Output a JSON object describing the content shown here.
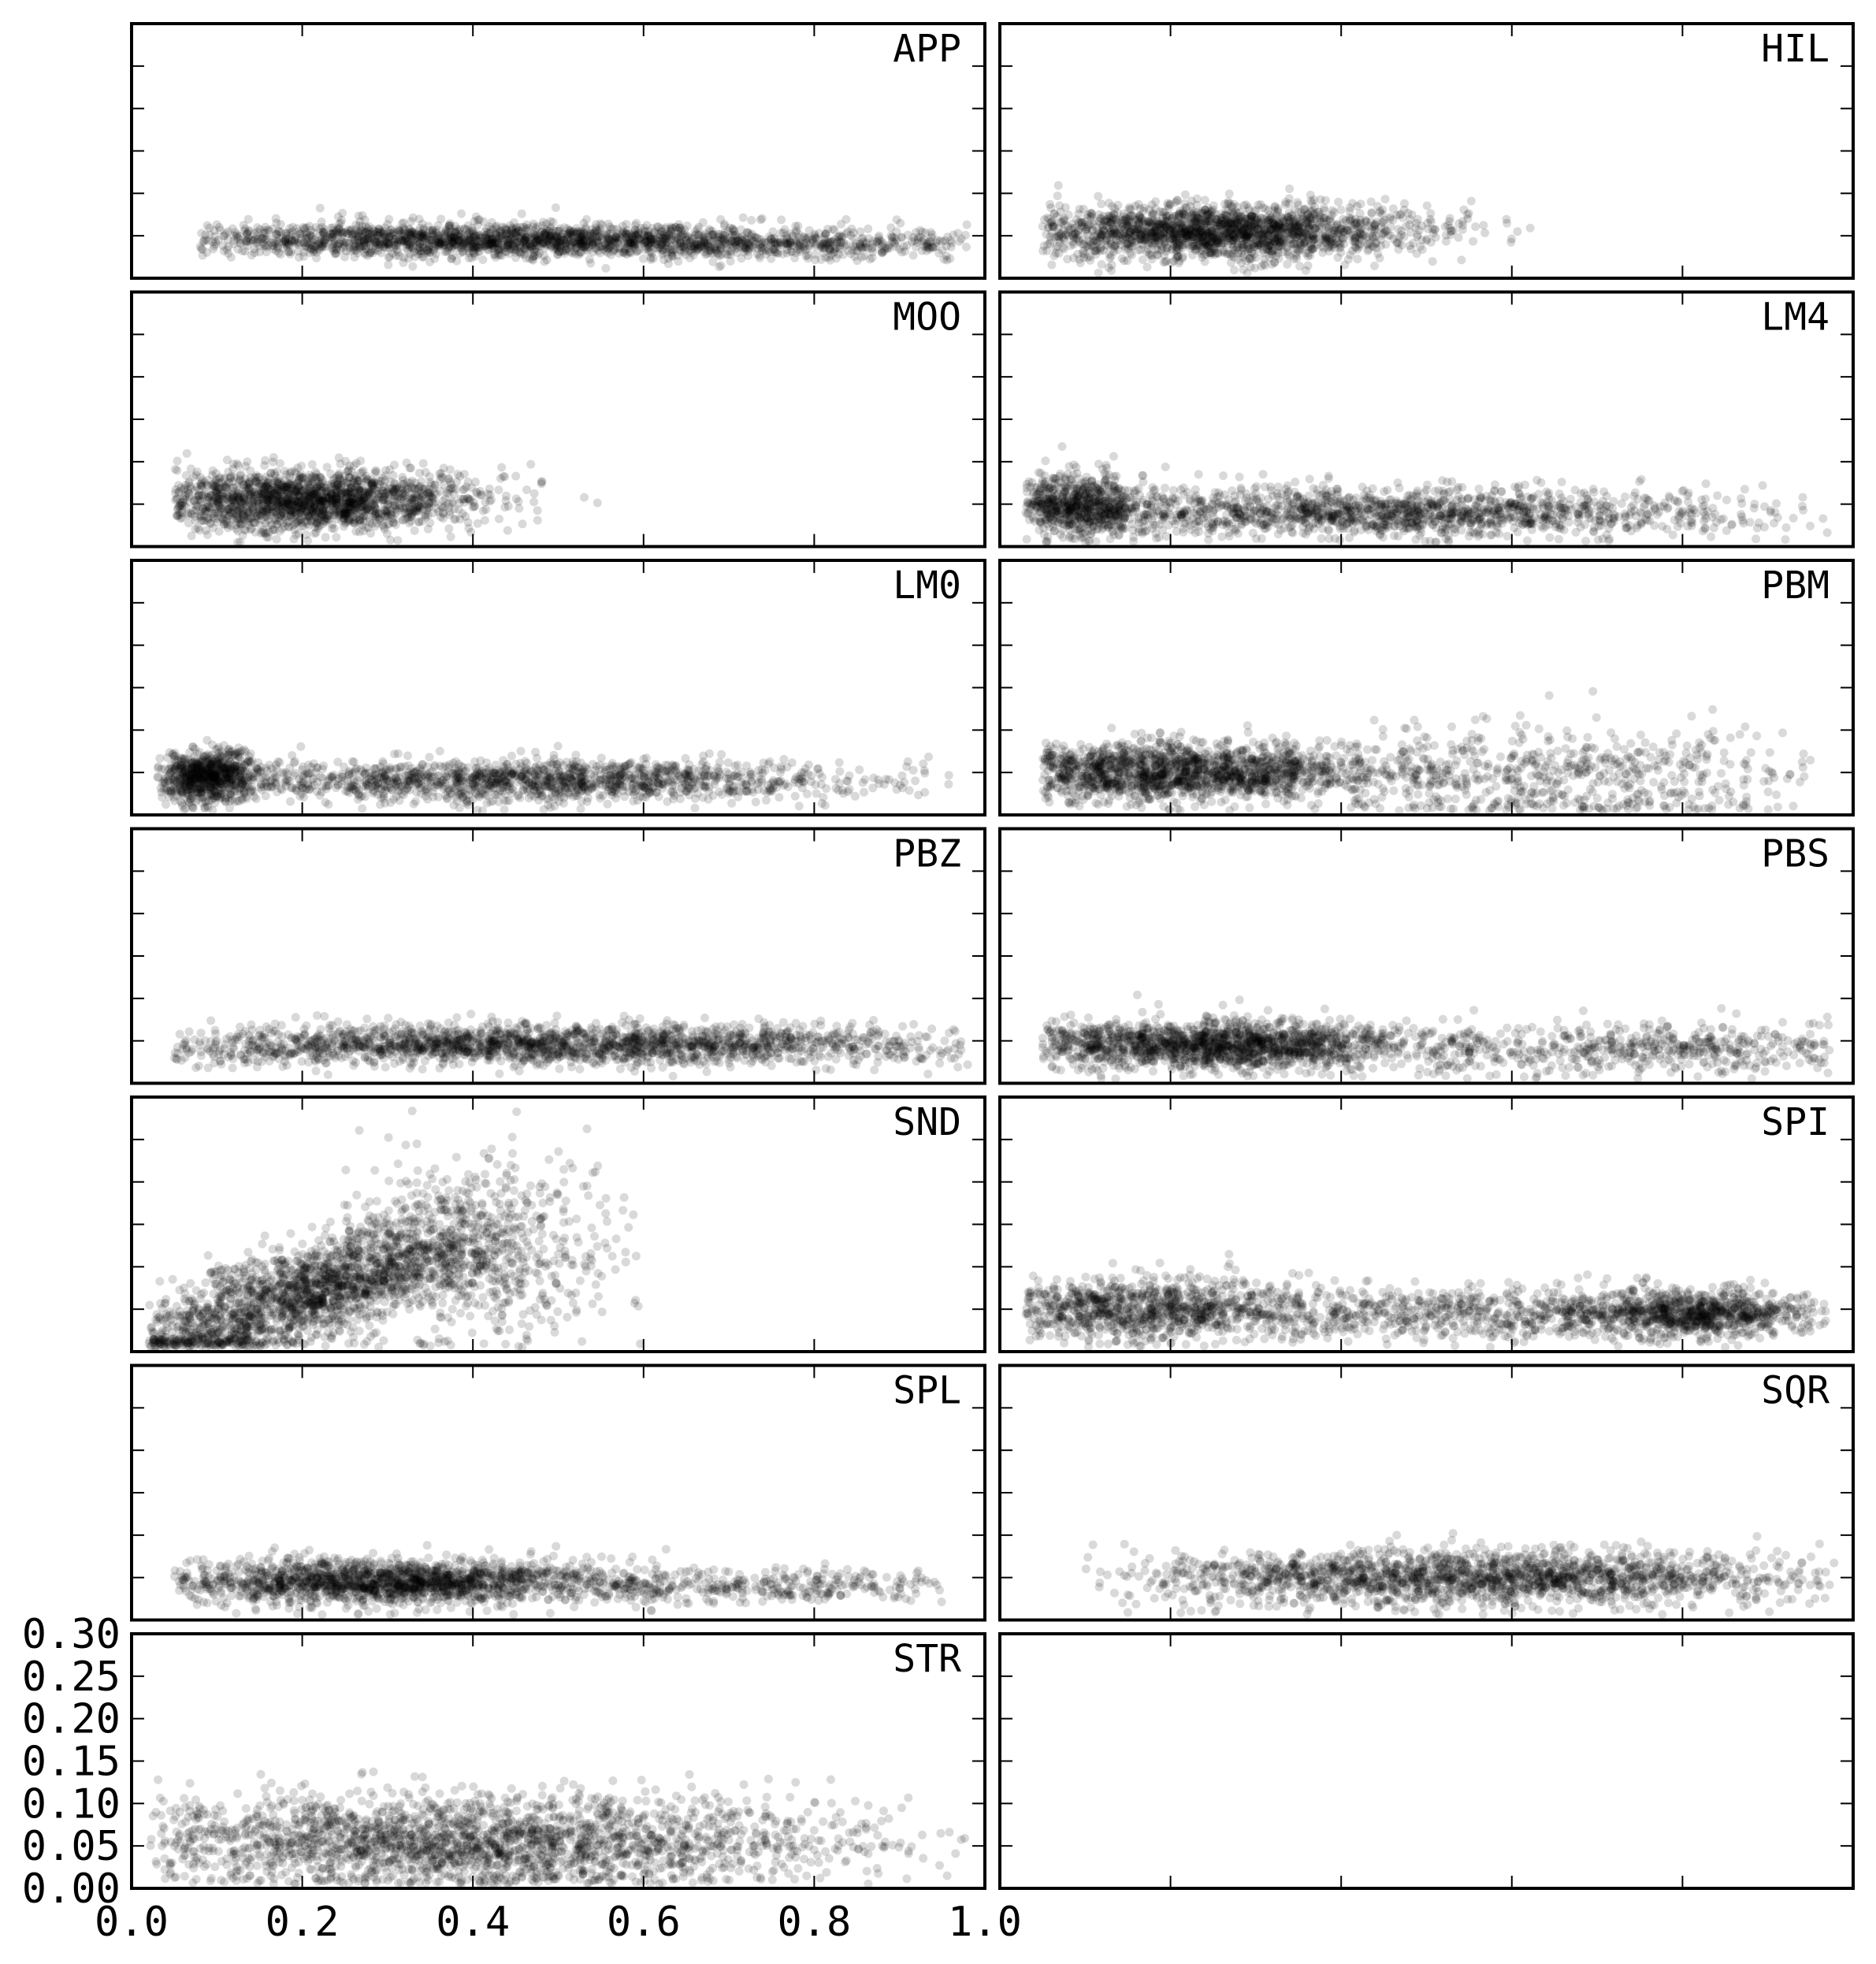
{
  "chart_data": {
    "type": "scatter",
    "layout": "small-multiples grid, 7 rows x 2 columns, shared axes",
    "xlim": [
      0.0,
      1.0
    ],
    "ylim": [
      0.0,
      0.3
    ],
    "x_tick_labels": [
      "0.0",
      "0.2",
      "0.4",
      "0.6",
      "0.8",
      "1.0"
    ],
    "y_tick_labels": [
      "0.00",
      "0.05",
      "0.10",
      "0.15",
      "0.20",
      "0.25",
      "0.30"
    ],
    "point_color": "#000000",
    "point_opacity": 0.15,
    "xlabel": "",
    "ylabel": "",
    "panels": [
      {
        "label": "APP",
        "clusters": [
          {
            "x": [
              0.08,
              0.98
            ],
            "center": 0.4,
            "spread": 0.2,
            "y": 0.045,
            "ysd": 0.01,
            "n": 1700
          },
          {
            "x": [
              0.4,
              0.98
            ],
            "center": 0.75,
            "spread": 0.15,
            "y": 0.04,
            "ysd": 0.009,
            "n": 500
          }
        ]
      },
      {
        "label": "HIL",
        "clusters": [
          {
            "x": [
              0.05,
              0.65
            ],
            "center": 0.25,
            "spread": 0.12,
            "y": 0.055,
            "ysd": 0.016,
            "n": 1900
          }
        ]
      },
      {
        "label": "MOO",
        "clusters": [
          {
            "x": [
              0.05,
              0.6
            ],
            "center": 0.2,
            "spread": 0.1,
            "y": 0.055,
            "ysd": 0.018,
            "n": 1800
          }
        ]
      },
      {
        "label": "LM4",
        "clusters": [
          {
            "x": [
              0.03,
              0.2
            ],
            "center": 0.09,
            "spread": 0.04,
            "y": 0.05,
            "ysd": 0.018,
            "n": 700
          },
          {
            "x": [
              0.1,
              0.98
            ],
            "center": 0.45,
            "spread": 0.22,
            "y": 0.04,
            "ysd": 0.014,
            "n": 1500
          }
        ]
      },
      {
        "label": "LM0",
        "clusters": [
          {
            "x": [
              0.03,
              0.17
            ],
            "center": 0.09,
            "spread": 0.03,
            "y": 0.045,
            "ysd": 0.015,
            "n": 800
          },
          {
            "x": [
              0.15,
              0.98
            ],
            "center": 0.45,
            "spread": 0.2,
            "y": 0.04,
            "ysd": 0.012,
            "n": 1400
          }
        ]
      },
      {
        "label": "PBM",
        "clusters": [
          {
            "x": [
              0.05,
              0.55
            ],
            "center": 0.2,
            "spread": 0.13,
            "y": 0.05,
            "ysd": 0.017,
            "n": 1700
          },
          {
            "x": [
              0.4,
              0.95
            ],
            "center": 0.65,
            "spread": 0.16,
            "y": 0.045,
            "ysd": 0.03,
            "n": 600
          }
        ]
      },
      {
        "label": "PBZ",
        "clusters": [
          {
            "x": [
              0.05,
              0.98
            ],
            "center": 0.5,
            "spread": 0.26,
            "y": 0.045,
            "ysd": 0.012,
            "n": 2000
          }
        ]
      },
      {
        "label": "PBS",
        "clusters": [
          {
            "x": [
              0.05,
              0.6
            ],
            "center": 0.25,
            "spread": 0.13,
            "y": 0.045,
            "ysd": 0.014,
            "n": 1700
          },
          {
            "x": [
              0.5,
              0.98
            ],
            "center": 0.75,
            "spread": 0.15,
            "y": 0.04,
            "ysd": 0.016,
            "n": 500
          }
        ]
      },
      {
        "label": "SND",
        "clusters": [
          {
            "x": [
              0.02,
              0.45
            ],
            "center": 0.2,
            "spread": 0.12,
            "slope": 0.9,
            "y": 0.01,
            "ysd": 0.03,
            "n": 2000
          },
          {
            "x": [
              0.25,
              0.6
            ],
            "center": 0.4,
            "spread": 0.09,
            "y": 0.12,
            "ysd": 0.055,
            "n": 600
          }
        ]
      },
      {
        "label": "SPI",
        "clusters": [
          {
            "x": [
              0.03,
              0.45
            ],
            "center": 0.17,
            "spread": 0.1,
            "y": 0.05,
            "ysd": 0.018,
            "n": 1000
          },
          {
            "x": [
              0.3,
              0.95
            ],
            "center": 0.6,
            "spread": 0.18,
            "y": 0.045,
            "ysd": 0.016,
            "n": 800
          },
          {
            "x": [
              0.65,
              0.98
            ],
            "center": 0.82,
            "spread": 0.07,
            "y": 0.045,
            "ysd": 0.013,
            "n": 700
          }
        ]
      },
      {
        "label": "SPL",
        "clusters": [
          {
            "x": [
              0.05,
              0.7
            ],
            "center": 0.3,
            "spread": 0.14,
            "y": 0.045,
            "ysd": 0.013,
            "n": 1800
          },
          {
            "x": [
              0.55,
              0.95
            ],
            "center": 0.75,
            "spread": 0.12,
            "y": 0.04,
            "ysd": 0.01,
            "n": 300
          }
        ]
      },
      {
        "label": "SQR",
        "clusters": [
          {
            "x": [
              0.1,
              0.98
            ],
            "center": 0.55,
            "spread": 0.2,
            "y": 0.05,
            "ysd": 0.016,
            "n": 1900
          }
        ]
      },
      {
        "label": "STR",
        "clusters": [
          {
            "x": [
              0.02,
              0.98
            ],
            "center": 0.4,
            "spread": 0.22,
            "y": 0.055,
            "ysd": 0.028,
            "n": 2300
          }
        ]
      },
      {
        "label": "",
        "clusters": []
      }
    ]
  }
}
